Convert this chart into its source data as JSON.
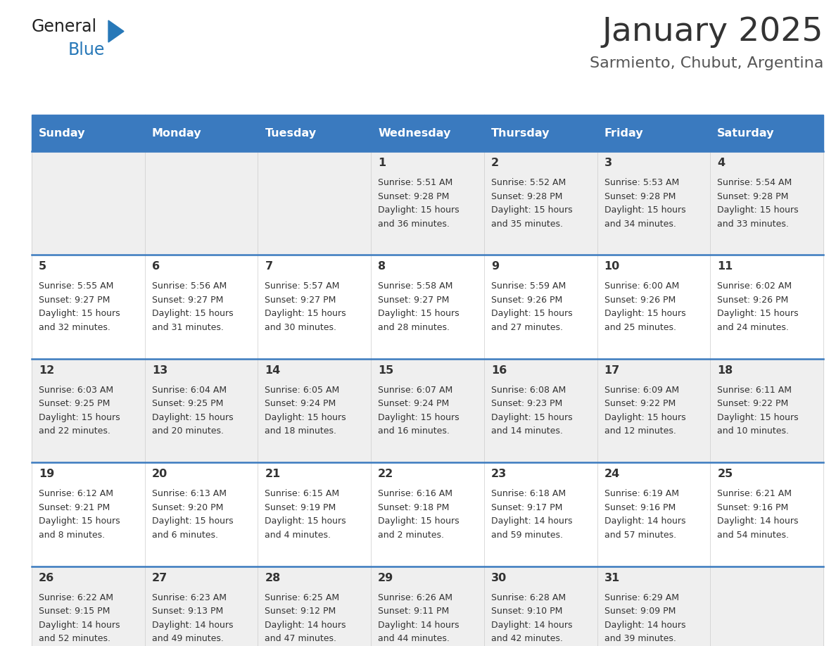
{
  "title": "January 2025",
  "subtitle": "Sarmiento, Chubut, Argentina",
  "days_of_week": [
    "Sunday",
    "Monday",
    "Tuesday",
    "Wednesday",
    "Thursday",
    "Friday",
    "Saturday"
  ],
  "header_bg_color": "#3a7abf",
  "header_text_color": "#ffffff",
  "cell_bg_gray": "#efefef",
  "cell_bg_white": "#ffffff",
  "separator_color": "#3a7abf",
  "day_number_color": "#333333",
  "cell_text_color": "#333333",
  "title_color": "#333333",
  "subtitle_color": "#555555",
  "logo_general_color": "#222222",
  "logo_blue_color": "#2778b8",
  "calendar_data": [
    [
      null,
      null,
      null,
      {
        "day": "1",
        "sunrise": "5:51 AM",
        "sunset": "9:28 PM",
        "daylight_h": "15 hours",
        "daylight_m": "and 36 minutes."
      },
      {
        "day": "2",
        "sunrise": "5:52 AM",
        "sunset": "9:28 PM",
        "daylight_h": "15 hours",
        "daylight_m": "and 35 minutes."
      },
      {
        "day": "3",
        "sunrise": "5:53 AM",
        "sunset": "9:28 PM",
        "daylight_h": "15 hours",
        "daylight_m": "and 34 minutes."
      },
      {
        "day": "4",
        "sunrise": "5:54 AM",
        "sunset": "9:28 PM",
        "daylight_h": "15 hours",
        "daylight_m": "and 33 minutes."
      }
    ],
    [
      {
        "day": "5",
        "sunrise": "5:55 AM",
        "sunset": "9:27 PM",
        "daylight_h": "15 hours",
        "daylight_m": "and 32 minutes."
      },
      {
        "day": "6",
        "sunrise": "5:56 AM",
        "sunset": "9:27 PM",
        "daylight_h": "15 hours",
        "daylight_m": "and 31 minutes."
      },
      {
        "day": "7",
        "sunrise": "5:57 AM",
        "sunset": "9:27 PM",
        "daylight_h": "15 hours",
        "daylight_m": "and 30 minutes."
      },
      {
        "day": "8",
        "sunrise": "5:58 AM",
        "sunset": "9:27 PM",
        "daylight_h": "15 hours",
        "daylight_m": "and 28 minutes."
      },
      {
        "day": "9",
        "sunrise": "5:59 AM",
        "sunset": "9:26 PM",
        "daylight_h": "15 hours",
        "daylight_m": "and 27 minutes."
      },
      {
        "day": "10",
        "sunrise": "6:00 AM",
        "sunset": "9:26 PM",
        "daylight_h": "15 hours",
        "daylight_m": "and 25 minutes."
      },
      {
        "day": "11",
        "sunrise": "6:02 AM",
        "sunset": "9:26 PM",
        "daylight_h": "15 hours",
        "daylight_m": "and 24 minutes."
      }
    ],
    [
      {
        "day": "12",
        "sunrise": "6:03 AM",
        "sunset": "9:25 PM",
        "daylight_h": "15 hours",
        "daylight_m": "and 22 minutes."
      },
      {
        "day": "13",
        "sunrise": "6:04 AM",
        "sunset": "9:25 PM",
        "daylight_h": "15 hours",
        "daylight_m": "and 20 minutes."
      },
      {
        "day": "14",
        "sunrise": "6:05 AM",
        "sunset": "9:24 PM",
        "daylight_h": "15 hours",
        "daylight_m": "and 18 minutes."
      },
      {
        "day": "15",
        "sunrise": "6:07 AM",
        "sunset": "9:24 PM",
        "daylight_h": "15 hours",
        "daylight_m": "and 16 minutes."
      },
      {
        "day": "16",
        "sunrise": "6:08 AM",
        "sunset": "9:23 PM",
        "daylight_h": "15 hours",
        "daylight_m": "and 14 minutes."
      },
      {
        "day": "17",
        "sunrise": "6:09 AM",
        "sunset": "9:22 PM",
        "daylight_h": "15 hours",
        "daylight_m": "and 12 minutes."
      },
      {
        "day": "18",
        "sunrise": "6:11 AM",
        "sunset": "9:22 PM",
        "daylight_h": "15 hours",
        "daylight_m": "and 10 minutes."
      }
    ],
    [
      {
        "day": "19",
        "sunrise": "6:12 AM",
        "sunset": "9:21 PM",
        "daylight_h": "15 hours",
        "daylight_m": "and 8 minutes."
      },
      {
        "day": "20",
        "sunrise": "6:13 AM",
        "sunset": "9:20 PM",
        "daylight_h": "15 hours",
        "daylight_m": "and 6 minutes."
      },
      {
        "day": "21",
        "sunrise": "6:15 AM",
        "sunset": "9:19 PM",
        "daylight_h": "15 hours",
        "daylight_m": "and 4 minutes."
      },
      {
        "day": "22",
        "sunrise": "6:16 AM",
        "sunset": "9:18 PM",
        "daylight_h": "15 hours",
        "daylight_m": "and 2 minutes."
      },
      {
        "day": "23",
        "sunrise": "6:18 AM",
        "sunset": "9:17 PM",
        "daylight_h": "14 hours",
        "daylight_m": "and 59 minutes."
      },
      {
        "day": "24",
        "sunrise": "6:19 AM",
        "sunset": "9:16 PM",
        "daylight_h": "14 hours",
        "daylight_m": "and 57 minutes."
      },
      {
        "day": "25",
        "sunrise": "6:21 AM",
        "sunset": "9:16 PM",
        "daylight_h": "14 hours",
        "daylight_m": "and 54 minutes."
      }
    ],
    [
      {
        "day": "26",
        "sunrise": "6:22 AM",
        "sunset": "9:15 PM",
        "daylight_h": "14 hours",
        "daylight_m": "and 52 minutes."
      },
      {
        "day": "27",
        "sunrise": "6:23 AM",
        "sunset": "9:13 PM",
        "daylight_h": "14 hours",
        "daylight_m": "and 49 minutes."
      },
      {
        "day": "28",
        "sunrise": "6:25 AM",
        "sunset": "9:12 PM",
        "daylight_h": "14 hours",
        "daylight_m": "and 47 minutes."
      },
      {
        "day": "29",
        "sunrise": "6:26 AM",
        "sunset": "9:11 PM",
        "daylight_h": "14 hours",
        "daylight_m": "and 44 minutes."
      },
      {
        "day": "30",
        "sunrise": "6:28 AM",
        "sunset": "9:10 PM",
        "daylight_h": "14 hours",
        "daylight_m": "and 42 minutes."
      },
      {
        "day": "31",
        "sunrise": "6:29 AM",
        "sunset": "9:09 PM",
        "daylight_h": "14 hours",
        "daylight_m": "and 39 minutes."
      },
      null
    ]
  ]
}
